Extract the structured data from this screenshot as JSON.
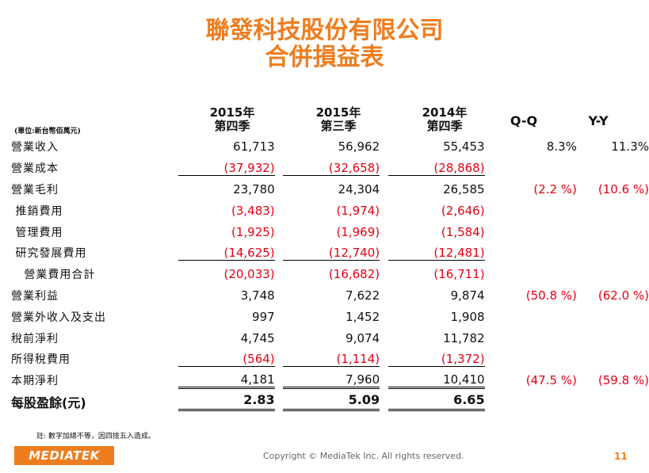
{
  "title": {
    "line1": "聯發科技股份有限公司",
    "line2": "合併損益表"
  },
  "unit_note": "(單位:新台幣佰萬元)",
  "periods": [
    {
      "year": "2015年",
      "quarter": "第四季"
    },
    {
      "year": "2015年",
      "quarter": "第三季"
    },
    {
      "year": "2014年",
      "quarter": "第四季"
    }
  ],
  "change_headers": {
    "qq": "Q-Q",
    "yy": "Y-Y"
  },
  "rows": [
    {
      "label": "營業收入",
      "v1": "61,713",
      "v2": "56,962",
      "v3": "55,453",
      "qq": "8.3%",
      "yy": "11.3%"
    },
    {
      "label": "營業成本",
      "v1": "(37,932)",
      "v2": "(32,658)",
      "v3": "(28,868)",
      "qq": "",
      "yy": ""
    },
    {
      "label": "營業毛利",
      "v1": "23,780",
      "v2": "24,304",
      "v3": "26,585",
      "qq": "(2.2 %)",
      "yy": "(10.6 %)"
    },
    {
      "label": " 推銷費用",
      "v1": "(3,483)",
      "v2": "(1,974)",
      "v3": "(2,646)",
      "qq": "",
      "yy": ""
    },
    {
      "label": " 管理費用",
      "v1": "(1,925)",
      "v2": "(1,969)",
      "v3": "(1,584)",
      "qq": "",
      "yy": ""
    },
    {
      "label": " 研究發展費用",
      "v1": "(14,625)",
      "v2": "(12,740)",
      "v3": "(12,481)",
      "qq": "",
      "yy": ""
    },
    {
      "label": "   營業費用合計",
      "v1": "(20,033)",
      "v2": "(16,682)",
      "v3": "(16,711)",
      "qq": "",
      "yy": ""
    },
    {
      "label": "營業利益",
      "v1": "3,748",
      "v2": "7,622",
      "v3": "9,874",
      "qq": "(50.8 %)",
      "yy": "(62.0 %)"
    },
    {
      "label": "營業外收入及支出",
      "v1": "997",
      "v2": "1,452",
      "v3": "1,908",
      "qq": "",
      "yy": ""
    },
    {
      "label": "稅前淨利",
      "v1": "4,745",
      "v2": "9,074",
      "v3": "11,782",
      "qq": "",
      "yy": ""
    },
    {
      "label": "所得稅費用",
      "v1": "(564)",
      "v2": "(1,114)",
      "v3": "(1,372)",
      "qq": "",
      "yy": ""
    },
    {
      "label": "本期淨利",
      "v1": "4,181",
      "v2": "7,960",
      "v3": "10,410",
      "qq": "(47.5 %)",
      "yy": "(59.8 %)"
    }
  ],
  "eps": {
    "label": "每股盈餘(元)",
    "v1": "2.83",
    "v2": "5.09",
    "v3": "6.65"
  },
  "footnote": "註: 數字加總不等，因四捨五入造成。",
  "footer": {
    "logo": "MEDIATEK",
    "copyright": "Copyright © MediaTek Inc. All rights reserved.",
    "page": "11"
  },
  "colors": {
    "accent": "#ee7d1f",
    "negative": "#e60012"
  }
}
